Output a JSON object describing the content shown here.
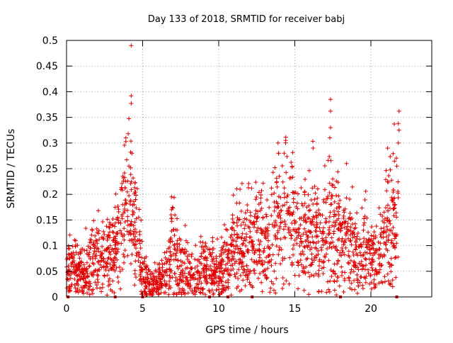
{
  "chart_data": {
    "type": "scatter",
    "title": "Day 133 of 2018, SRMTID for receiver babj",
    "xlabel": "GPS time / hours",
    "ylabel": "SRMTID / TECUs",
    "xlim": [
      0,
      24
    ],
    "ylim": [
      0,
      0.5
    ],
    "x_ticks": [
      0,
      5,
      10,
      15,
      20
    ],
    "y_ticks": [
      0,
      0.05,
      0.1,
      0.15,
      0.2,
      0.25,
      0.3,
      0.35,
      0.4,
      0.45,
      0.5
    ],
    "x_tick_labels": [
      "0",
      "5",
      "10",
      "15",
      "20"
    ],
    "y_tick_labels": [
      "0",
      "0.05",
      "0.1",
      "0.15",
      "0.2",
      "0.25",
      "0.3",
      "0.35",
      "0.4",
      "0.45",
      "0.5"
    ],
    "grid": true,
    "marker": "+",
    "color": "#e00000",
    "baseline_markers_x": [
      0.1,
      3.2,
      5.0,
      9.4,
      10.6,
      12.2,
      18.0,
      21.7
    ],
    "envelope": [
      [
        0.0,
        0.06,
        0.03
      ],
      [
        0.5,
        0.05,
        0.025
      ],
      [
        1.0,
        0.045,
        0.025
      ],
      [
        1.5,
        0.06,
        0.03
      ],
      [
        2.0,
        0.07,
        0.035
      ],
      [
        2.5,
        0.08,
        0.035
      ],
      [
        3.0,
        0.09,
        0.04
      ],
      [
        3.5,
        0.11,
        0.05
      ],
      [
        3.8,
        0.16,
        0.06
      ],
      [
        4.1,
        0.22,
        0.07
      ],
      [
        4.4,
        0.15,
        0.06
      ],
      [
        4.8,
        0.09,
        0.04
      ],
      [
        5.2,
        0.03,
        0.02
      ],
      [
        5.6,
        0.025,
        0.02
      ],
      [
        6.0,
        0.03,
        0.02
      ],
      [
        6.5,
        0.035,
        0.025
      ],
      [
        6.9,
        0.09,
        0.05
      ],
      [
        7.3,
        0.07,
        0.035
      ],
      [
        7.8,
        0.05,
        0.03
      ],
      [
        8.3,
        0.04,
        0.025
      ],
      [
        8.8,
        0.045,
        0.03
      ],
      [
        9.3,
        0.06,
        0.03
      ],
      [
        9.8,
        0.045,
        0.025
      ],
      [
        10.3,
        0.06,
        0.035
      ],
      [
        10.8,
        0.08,
        0.04
      ],
      [
        11.3,
        0.1,
        0.045
      ],
      [
        11.8,
        0.1,
        0.045
      ],
      [
        12.3,
        0.11,
        0.05
      ],
      [
        12.8,
        0.12,
        0.05
      ],
      [
        13.3,
        0.1,
        0.05
      ],
      [
        13.8,
        0.14,
        0.06
      ],
      [
        14.3,
        0.17,
        0.07
      ],
      [
        14.8,
        0.16,
        0.07
      ],
      [
        15.3,
        0.11,
        0.05
      ],
      [
        15.8,
        0.12,
        0.05
      ],
      [
        16.3,
        0.13,
        0.06
      ],
      [
        16.8,
        0.11,
        0.05
      ],
      [
        17.3,
        0.15,
        0.07
      ],
      [
        17.8,
        0.12,
        0.06
      ],
      [
        18.3,
        0.11,
        0.05
      ],
      [
        18.8,
        0.09,
        0.045
      ],
      [
        19.3,
        0.09,
        0.045
      ],
      [
        19.8,
        0.08,
        0.04
      ],
      [
        20.3,
        0.07,
        0.035
      ],
      [
        20.8,
        0.1,
        0.05
      ],
      [
        21.3,
        0.15,
        0.07
      ],
      [
        21.8,
        0.19,
        0.08
      ]
    ],
    "spikes": [
      [
        4.25,
        0.49
      ],
      [
        4.25,
        0.392
      ],
      [
        4.25,
        0.377
      ],
      [
        4.05,
        0.318
      ],
      [
        3.9,
        0.31
      ],
      [
        4.3,
        0.28
      ],
      [
        4.1,
        0.255
      ],
      [
        6.9,
        0.195
      ],
      [
        6.9,
        0.17
      ],
      [
        14.4,
        0.305
      ],
      [
        13.9,
        0.3
      ],
      [
        14.3,
        0.28
      ],
      [
        17.35,
        0.385
      ],
      [
        17.35,
        0.362
      ],
      [
        17.35,
        0.33
      ],
      [
        17.3,
        0.31
      ],
      [
        16.2,
        0.29
      ],
      [
        21.85,
        0.362
      ],
      [
        21.8,
        0.338
      ],
      [
        21.85,
        0.325
      ],
      [
        21.8,
        0.3
      ],
      [
        21.1,
        0.29
      ],
      [
        21.7,
        0.255
      ],
      [
        18.4,
        0.26
      ]
    ]
  }
}
